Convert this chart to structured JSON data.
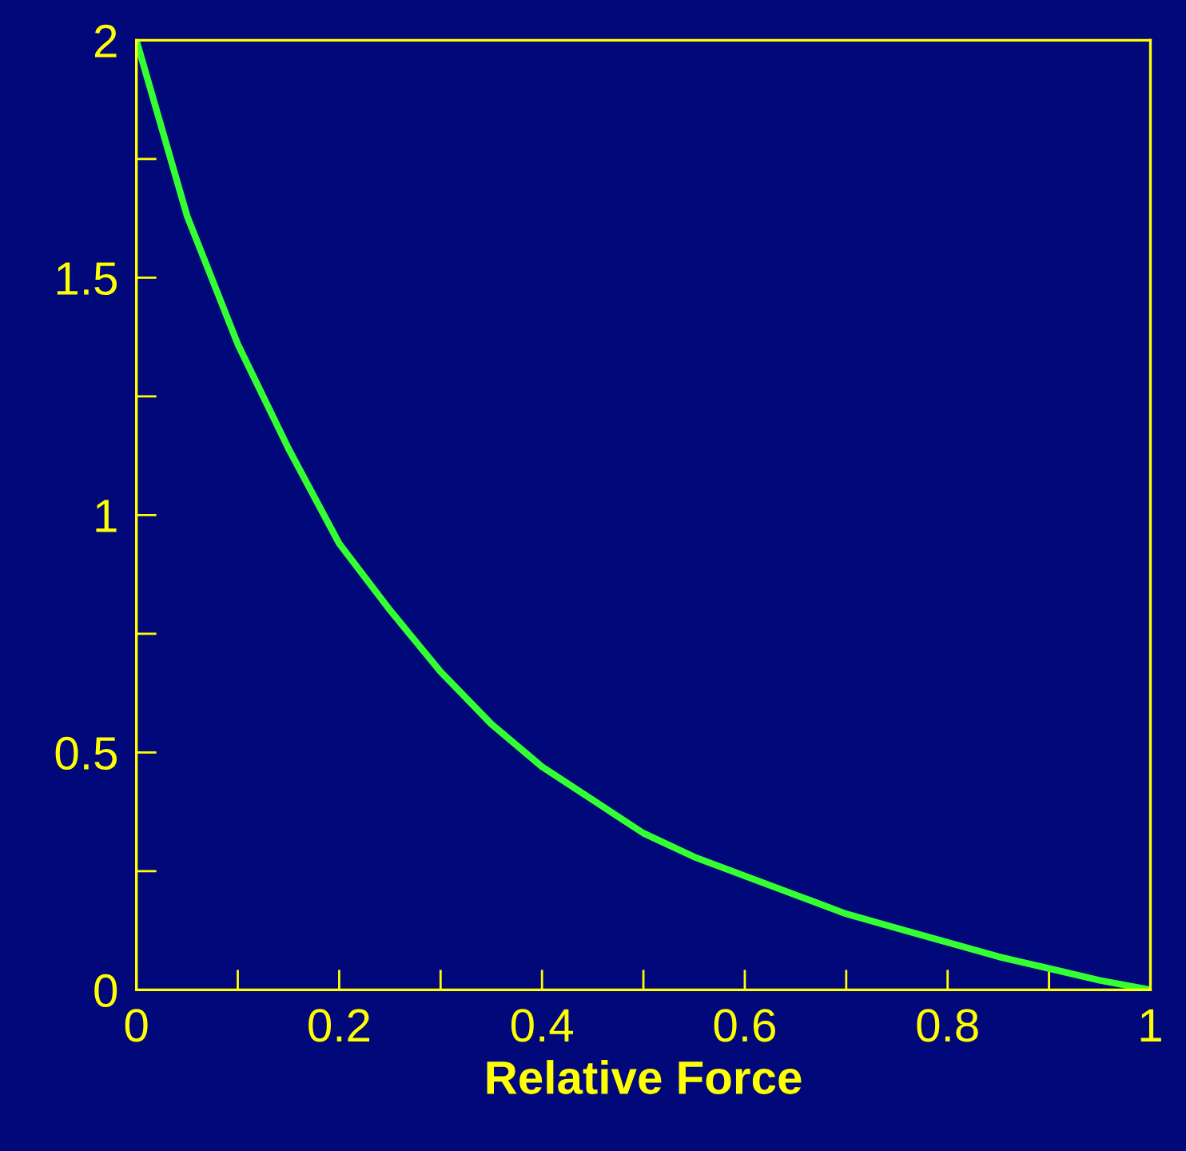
{
  "chart_data": {
    "type": "line",
    "xlabel": "Relative Force",
    "x": [
      0,
      0.05,
      0.1,
      0.15,
      0.2,
      0.25,
      0.3,
      0.35,
      0.4,
      0.45,
      0.5,
      0.55,
      0.6,
      0.65,
      0.7,
      0.75,
      0.8,
      0.85,
      0.9,
      0.95,
      1
    ],
    "series": [
      {
        "color": "#33ff33",
        "values": [
          2,
          1.63,
          1.36,
          1.14,
          0.94,
          0.8,
          0.67,
          0.56,
          0.47,
          0.4,
          0.33,
          0.28,
          0.24,
          0.2,
          0.16,
          0.13,
          0.1,
          0.07,
          0.045,
          0.02,
          0
        ]
      }
    ],
    "xlim": [
      0,
      1
    ],
    "ylim": [
      0,
      2
    ],
    "xticks": [
      0,
      {
        "value": 0.1,
        "label": null
      },
      0.2,
      {
        "value": 0.3,
        "label": null
      },
      0.4,
      {
        "value": 0.5,
        "label": null
      },
      0.6,
      {
        "value": 0.7,
        "label": null
      },
      0.8,
      {
        "value": 0.9,
        "label": null
      },
      1
    ],
    "yticks": [
      0,
      {
        "value": 0.25,
        "label": null
      },
      0.5,
      {
        "value": 0.75,
        "label": null
      },
      1,
      {
        "value": 1.25,
        "label": null
      },
      1.5,
      {
        "value": 1.75,
        "label": null
      },
      2
    ],
    "grid": false,
    "legend": false,
    "marker": "none",
    "line_style": "solid"
  }
}
